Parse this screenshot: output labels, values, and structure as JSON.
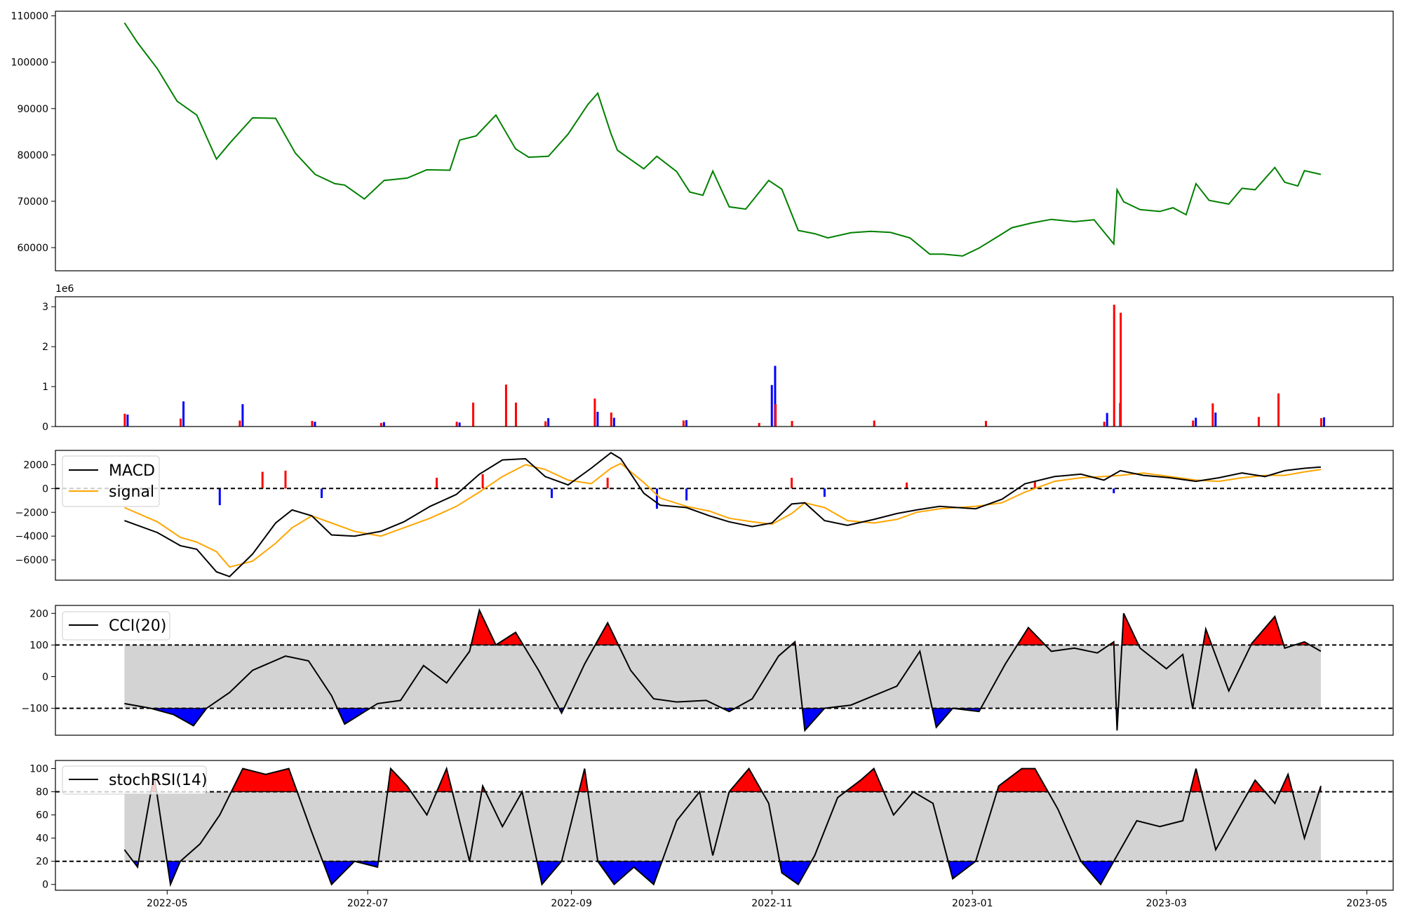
{
  "chart_data": [
    {
      "type": "line",
      "panel": "price",
      "x": [
        "2022-04-18",
        "2022-04-22",
        "2022-04-28",
        "2022-05-04",
        "2022-05-10",
        "2022-05-16",
        "2022-05-20",
        "2022-05-27",
        "2022-06-03",
        "2022-06-09",
        "2022-06-15",
        "2022-06-21",
        "2022-06-24",
        "2022-06-30",
        "2022-07-06",
        "2022-07-13",
        "2022-07-19",
        "2022-07-26",
        "2022-07-29",
        "2022-08-03",
        "2022-08-09",
        "2022-08-15",
        "2022-08-19",
        "2022-08-25",
        "2022-08-31",
        "2022-09-06",
        "2022-09-09",
        "2022-09-13",
        "2022-09-15",
        "2022-09-20",
        "2022-09-23",
        "2022-09-27",
        "2022-10-03",
        "2022-10-07",
        "2022-10-11",
        "2022-10-14",
        "2022-10-19",
        "2022-10-24",
        "2022-10-31",
        "2022-11-04",
        "2022-11-09",
        "2022-11-14",
        "2022-11-18",
        "2022-11-25",
        "2022-12-01",
        "2022-12-07",
        "2022-12-13",
        "2022-12-19",
        "2022-12-23",
        "2022-12-29",
        "2023-01-03",
        "2023-01-09",
        "2023-01-13",
        "2023-01-19",
        "2023-01-25",
        "2023-02-01",
        "2023-02-07",
        "2023-02-13",
        "2023-02-14",
        "2023-02-16",
        "2023-02-21",
        "2023-02-27",
        "2023-03-03",
        "2023-03-07",
        "2023-03-10",
        "2023-03-14",
        "2023-03-20",
        "2023-03-24",
        "2023-03-28",
        "2023-04-03",
        "2023-04-06",
        "2023-04-10",
        "2023-04-12",
        "2023-04-17"
      ],
      "series": [
        {
          "values": [
            108500,
            104200,
            98600,
            91600,
            88600,
            79100,
            82500,
            88000,
            87900,
            80400,
            75800,
            73800,
            73500,
            70500,
            74500,
            75000,
            76800,
            76700,
            83200,
            84100,
            88600,
            81300,
            79500,
            79700,
            84500,
            90900,
            93300,
            84600,
            81000,
            78500,
            77000,
            79700,
            76400,
            72000,
            71300,
            76500,
            68800,
            68300,
            74500,
            72600,
            63700,
            63000,
            62100,
            63200,
            63500,
            63300,
            62100,
            58600,
            58600,
            58200,
            59900,
            62500,
            64300,
            65300,
            66100,
            65600,
            66000,
            60800,
            72500,
            69900,
            68200,
            67800,
            68600,
            67100,
            73800,
            70200,
            69400,
            72800,
            72500,
            77300,
            74100,
            73300,
            76600,
            75800
          ]
        }
      ],
      "xlabel": "",
      "ylabel": "",
      "ylim": [
        55000,
        111000
      ],
      "grid": false
    },
    {
      "type": "bar",
      "panel": "volume",
      "x": [
        "2022-04-18",
        "2022-05-05",
        "2022-05-23",
        "2022-06-14",
        "2022-07-05",
        "2022-07-28",
        "2022-08-02",
        "2022-08-12",
        "2022-08-15",
        "2022-08-24",
        "2022-09-08",
        "2022-09-13",
        "2022-10-05",
        "2022-10-28",
        "2022-10-31",
        "2022-11-01",
        "2022-11-02",
        "2022-11-07",
        "2022-12-02",
        "2023-01-05",
        "2023-02-10",
        "2023-02-13",
        "2023-02-14",
        "2023-02-15",
        "2023-03-09",
        "2023-03-15",
        "2023-03-29",
        "2023-04-04",
        "2023-04-17"
      ],
      "series": [
        {
          "name": "up",
          "values": [
            320000,
            200000,
            150000,
            140000,
            90000,
            120000,
            600000,
            1050000,
            600000,
            130000,
            700000,
            350000,
            150000,
            90000,
            0,
            0,
            560000,
            140000,
            150000,
            140000,
            120000,
            3050000,
            0,
            2850000,
            150000,
            580000,
            240000,
            830000,
            210000
          ]
        },
        {
          "name": "down",
          "values": [
            300000,
            630000,
            560000,
            120000,
            110000,
            100000,
            0,
            0,
            0,
            210000,
            370000,
            220000,
            160000,
            0,
            1040000,
            1520000,
            0,
            0,
            0,
            0,
            340000,
            0,
            590000,
            0,
            220000,
            350000,
            0,
            0,
            230000
          ]
        }
      ],
      "offset_text": "1e6",
      "ylim": [
        0,
        3250000
      ],
      "yticks": [
        0,
        1,
        2,
        3
      ]
    },
    {
      "type": "line",
      "panel": "macd",
      "x": [
        "2022-04-18",
        "2022-04-28",
        "2022-05-05",
        "2022-05-10",
        "2022-05-16",
        "2022-05-20",
        "2022-05-27",
        "2022-06-03",
        "2022-06-08",
        "2022-06-14",
        "2022-06-20",
        "2022-06-27",
        "2022-07-05",
        "2022-07-12",
        "2022-07-20",
        "2022-07-28",
        "2022-08-04",
        "2022-08-11",
        "2022-08-18",
        "2022-08-24",
        "2022-08-31",
        "2022-09-07",
        "2022-09-13",
        "2022-09-16",
        "2022-09-23",
        "2022-09-28",
        "2022-10-06",
        "2022-10-13",
        "2022-10-19",
        "2022-10-26",
        "2022-11-01",
        "2022-11-07",
        "2022-11-11",
        "2022-11-17",
        "2022-11-24",
        "2022-12-02",
        "2022-12-09",
        "2022-12-15",
        "2022-12-22",
        "2023-01-02",
        "2023-01-10",
        "2023-01-17",
        "2023-01-26",
        "2023-02-03",
        "2023-02-10",
        "2023-02-15",
        "2023-02-22",
        "2023-03-02",
        "2023-03-10",
        "2023-03-17",
        "2023-03-24",
        "2023-03-31",
        "2023-04-06",
        "2023-04-12",
        "2023-04-17"
      ],
      "series": [
        {
          "name": "MACD",
          "values": [
            -2700,
            -3700,
            -4800,
            -5100,
            -7000,
            -7400,
            -5500,
            -2900,
            -1800,
            -2300,
            -3900,
            -4000,
            -3600,
            -2800,
            -1500,
            -500,
            1200,
            2400,
            2500,
            1000,
            300,
            1700,
            3000,
            2500,
            -400,
            -1400,
            -1600,
            -2300,
            -2800,
            -3200,
            -2900,
            -1300,
            -1200,
            -2700,
            -3100,
            -2600,
            -2100,
            -1800,
            -1500,
            -1700,
            -900,
            400,
            1000,
            1200,
            700,
            1500,
            1100,
            900,
            600,
            900,
            1300,
            1000,
            1500,
            1700,
            1800
          ]
        },
        {
          "name": "signal",
          "values": [
            -1600,
            -2800,
            -4100,
            -4500,
            -5300,
            -6600,
            -6100,
            -4600,
            -3300,
            -2300,
            -2900,
            -3600,
            -4000,
            -3300,
            -2500,
            -1500,
            -300,
            1000,
            2000,
            1600,
            700,
            400,
            1700,
            2100,
            500,
            -800,
            -1500,
            -1900,
            -2500,
            -2800,
            -3000,
            -2100,
            -1200,
            -1600,
            -2700,
            -2900,
            -2600,
            -2000,
            -1700,
            -1500,
            -1200,
            -300,
            600,
            900,
            1000,
            1100,
            1300,
            1000,
            700,
            600,
            900,
            1100,
            1100,
            1400,
            1600
          ]
        }
      ],
      "histogram": {
        "x": [
          "2022-05-17",
          "2022-05-30",
          "2022-06-06",
          "2022-06-17",
          "2022-07-22",
          "2022-08-05",
          "2022-08-26",
          "2022-09-12",
          "2022-09-27",
          "2022-10-06",
          "2022-11-07",
          "2022-11-17",
          "2022-12-12",
          "2023-01-20",
          "2023-02-13"
        ],
        "values": [
          -1400,
          1400,
          1500,
          -800,
          900,
          1200,
          -800,
          900,
          -1700,
          -1000,
          900,
          -700,
          500,
          600,
          -400
        ]
      },
      "legend": "upper left",
      "ylim": [
        -7700,
        3200
      ],
      "yticks": [
        -6000,
        -4000,
        -2000,
        0,
        2000
      ],
      "hline": 0
    },
    {
      "type": "line",
      "panel": "cci",
      "x": [
        "2022-04-18",
        "2022-04-26",
        "2022-05-03",
        "2022-05-09",
        "2022-05-13",
        "2022-05-20",
        "2022-05-27",
        "2022-06-06",
        "2022-06-13",
        "2022-06-20",
        "2022-06-24",
        "2022-07-04",
        "2022-07-11",
        "2022-07-18",
        "2022-07-25",
        "2022-08-01",
        "2022-08-04",
        "2022-08-09",
        "2022-08-15",
        "2022-08-22",
        "2022-08-29",
        "2022-09-05",
        "2022-09-12",
        "2022-09-19",
        "2022-09-26",
        "2022-10-03",
        "2022-10-12",
        "2022-10-19",
        "2022-10-26",
        "2022-11-03",
        "2022-11-08",
        "2022-11-11",
        "2022-11-17",
        "2022-11-25",
        "2022-12-02",
        "2022-12-09",
        "2022-12-16",
        "2022-12-21",
        "2022-12-26",
        "2023-01-03",
        "2023-01-11",
        "2023-01-18",
        "2023-01-25",
        "2023-02-01",
        "2023-02-08",
        "2023-02-13",
        "2023-02-14",
        "2023-02-16",
        "2023-02-21",
        "2023-03-01",
        "2023-03-06",
        "2023-03-09",
        "2023-03-13",
        "2023-03-20",
        "2023-03-27",
        "2023-04-03",
        "2023-04-06",
        "2023-04-12",
        "2023-04-17"
      ],
      "series": [
        {
          "name": "CCI(20)",
          "values": [
            -85,
            -100,
            -120,
            -155,
            -100,
            -50,
            20,
            65,
            50,
            -60,
            -150,
            -85,
            -75,
            35,
            -20,
            80,
            210,
            100,
            140,
            20,
            -115,
            40,
            170,
            20,
            -70,
            -80,
            -75,
            -110,
            -70,
            65,
            110,
            -170,
            -100,
            -90,
            -60,
            -30,
            80,
            -160,
            -100,
            -110,
            40,
            155,
            80,
            90,
            75,
            110,
            -170,
            200,
            90,
            25,
            70,
            -100,
            150,
            -45,
            105,
            190,
            90,
            110,
            80
          ]
        }
      ],
      "legend": "upper left",
      "ylim": [
        -185,
        225
      ],
      "yticks": [
        -100,
        0,
        100,
        200
      ],
      "hlines": [
        100,
        -100
      ]
    },
    {
      "type": "line",
      "panel": "stochrsi",
      "x": [
        "2022-04-18",
        "2022-04-22",
        "2022-04-27",
        "2022-05-02",
        "2022-05-05",
        "2022-05-11",
        "2022-05-17",
        "2022-05-24",
        "2022-05-31",
        "2022-06-07",
        "2022-06-14",
        "2022-06-20",
        "2022-06-27",
        "2022-07-04",
        "2022-07-08",
        "2022-07-13",
        "2022-07-19",
        "2022-07-25",
        "2022-08-01",
        "2022-08-05",
        "2022-08-11",
        "2022-08-17",
        "2022-08-23",
        "2022-08-29",
        "2022-09-05",
        "2022-09-09",
        "2022-09-14",
        "2022-09-20",
        "2022-09-26",
        "2022-10-03",
        "2022-10-10",
        "2022-10-14",
        "2022-10-19",
        "2022-10-25",
        "2022-10-31",
        "2022-11-04",
        "2022-11-09",
        "2022-11-14",
        "2022-11-21",
        "2022-11-28",
        "2022-12-02",
        "2022-12-08",
        "2022-12-14",
        "2022-12-20",
        "2022-12-26",
        "2023-01-02",
        "2023-01-09",
        "2023-01-16",
        "2023-01-20",
        "2023-01-27",
        "2023-02-03",
        "2023-02-09",
        "2023-02-14",
        "2023-02-20",
        "2023-02-27",
        "2023-03-06",
        "2023-03-10",
        "2023-03-16",
        "2023-03-22",
        "2023-03-28",
        "2023-04-03",
        "2023-04-07",
        "2023-04-12",
        "2023-04-17"
      ],
      "series": [
        {
          "name": "stochRSI(14)",
          "values": [
            30,
            15,
            95,
            0,
            20,
            35,
            60,
            100,
            95,
            100,
            45,
            0,
            20,
            15,
            100,
            85,
            60,
            100,
            20,
            85,
            50,
            80,
            0,
            20,
            100,
            20,
            0,
            15,
            0,
            55,
            80,
            25,
            80,
            100,
            70,
            10,
            0,
            25,
            75,
            90,
            100,
            60,
            80,
            70,
            5,
            20,
            85,
            100,
            100,
            65,
            20,
            0,
            25,
            55,
            50,
            55,
            100,
            30,
            60,
            90,
            70,
            95,
            40,
            85
          ]
        }
      ],
      "legend": "upper left",
      "ylim": [
        -5,
        107
      ],
      "yticks": [
        0,
        20,
        40,
        60,
        80,
        100
      ],
      "hlines": [
        80,
        20
      ],
      "x_tick_labels": [
        "2022-05",
        "2022-07",
        "2022-09",
        "2022-11",
        "2023-01",
        "2023-03",
        "2023-05"
      ]
    }
  ]
}
